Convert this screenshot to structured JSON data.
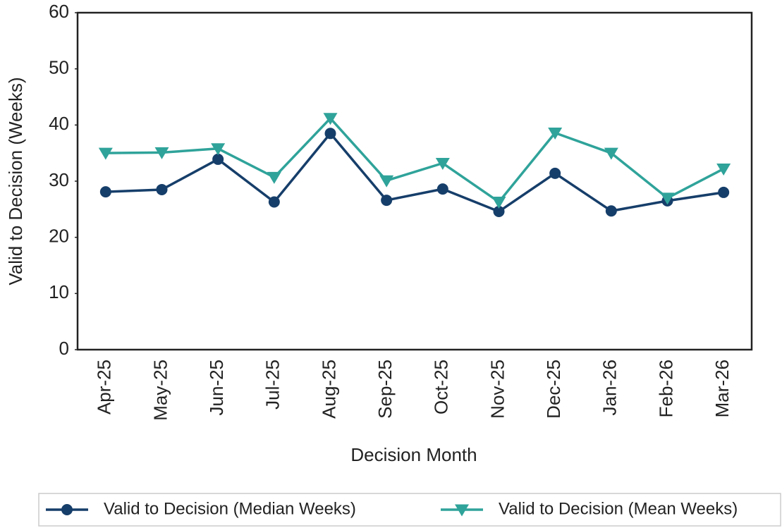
{
  "chart_data": {
    "type": "line",
    "xlabel": "Decision Month",
    "ylabel": "Valid to Decision (Weeks)",
    "categories": [
      "Apr-25",
      "May-25",
      "Jun-25",
      "Jul-25",
      "Aug-25",
      "Sep-25",
      "Oct-25",
      "Nov-25",
      "Dec-25",
      "Jan-26",
      "Feb-26",
      "Mar-26"
    ],
    "series": [
      {
        "name": "Valid to Decision (Median Weeks)",
        "color": "#163e6a",
        "marker": "circle",
        "values": [
          28.1,
          28.5,
          33.9,
          26.3,
          38.5,
          26.6,
          28.6,
          24.6,
          31.4,
          24.7,
          26.5,
          28.0
        ]
      },
      {
        "name": "Valid to Decision (Mean Weeks)",
        "color": "#2fa39a",
        "marker": "triangle-down",
        "values": [
          35.0,
          35.1,
          35.8,
          30.7,
          41.2,
          30.1,
          33.2,
          26.3,
          38.6,
          35.0,
          27.0,
          32.2
        ]
      }
    ],
    "ylim": [
      0,
      60
    ],
    "yticks": [
      0,
      10,
      20,
      30,
      40,
      50,
      60
    ],
    "grid": false,
    "legend": "bottom"
  }
}
